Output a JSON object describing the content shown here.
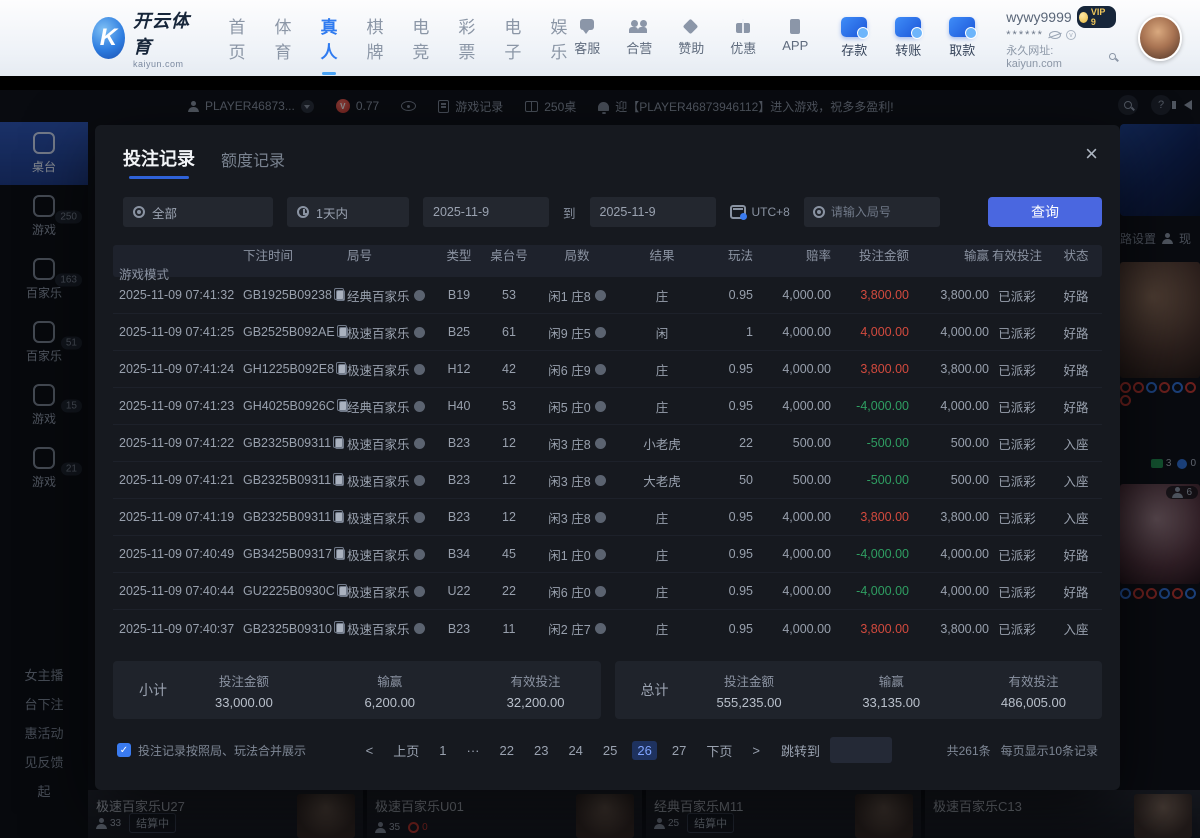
{
  "navbar": {
    "logo": {
      "mark": "K",
      "brand": "开云体育",
      "domain": "kaiyun.com"
    },
    "links": [
      {
        "label": "首页"
      },
      {
        "label": "体育"
      },
      {
        "label": "真人",
        "cls": "active"
      },
      {
        "label": "棋牌"
      },
      {
        "label": "电竞"
      },
      {
        "label": "彩票"
      },
      {
        "label": "电子"
      },
      {
        "label": "娱乐"
      }
    ],
    "quick": [
      {
        "label": "客服",
        "icon": "ic-service"
      },
      {
        "label": "合营",
        "icon": "ic-partner"
      },
      {
        "label": "赞助",
        "icon": "ic-sponsor"
      },
      {
        "label": "优惠",
        "icon": "ic-promo"
      },
      {
        "label": "APP",
        "icon": "ic-app"
      }
    ],
    "wallet": [
      {
        "label": "存款"
      },
      {
        "label": "转账"
      },
      {
        "label": "取款"
      }
    ],
    "user": {
      "name": "wywy9999",
      "vip": "VIP 9",
      "password_mask": "******",
      "site_note": "永久网址: kaiyun.com"
    }
  },
  "lobby": {
    "topbar": {
      "player": "PLAYER46873...",
      "balance": "0.77",
      "record": "游戏记录",
      "tables": "250桌",
      "marquee": "迎【PLAYER46873946112】进入游戏，祝多多盈利!"
    },
    "sidebar": [
      {
        "label": "桌台",
        "cls": "active"
      },
      {
        "label": "游戏",
        "badge": "250"
      },
      {
        "label": "百家乐",
        "badge": "163"
      },
      {
        "label": "百家乐",
        "badge": "51"
      },
      {
        "label": "游戏",
        "badge": "15"
      },
      {
        "label": "游戏",
        "badge": "21"
      }
    ],
    "sidebar_bottom": [
      {
        "label": "女主播"
      },
      {
        "label": "台下注"
      },
      {
        "label": "惠活动"
      },
      {
        "label": "见反馈"
      },
      {
        "label": "起"
      }
    ],
    "right_panel": {
      "road_settings": "路设置",
      "seat_label": "现",
      "viewers": "6",
      "stat_green": "3",
      "stat_blue": "0",
      "road1": [
        "red",
        "red",
        "blue",
        "red",
        "blue",
        "red",
        "red"
      ],
      "road2": [
        "blue",
        "red",
        "red",
        "blue",
        "red",
        "blue"
      ]
    },
    "tiles": [
      {
        "name": "极速百家乐U27",
        "players": "33",
        "status": "结算中"
      },
      {
        "name": "极速百家乐U01",
        "players": "35",
        "timer": "0"
      },
      {
        "name": "经典百家乐M11",
        "players": "25",
        "status": "结算中"
      },
      {
        "name": "极速百家乐C13"
      }
    ]
  },
  "modal": {
    "tabs": [
      {
        "label": "投注记录",
        "cls": "active"
      },
      {
        "label": "额度记录"
      }
    ],
    "close": "×",
    "filters": {
      "category": "全部",
      "range": "1天内",
      "date_from": "2025-11-9",
      "to_label": "到",
      "date_to": "2025-11-9",
      "timezone": "UTC+8",
      "round_placeholder": "请输入局号",
      "search": "查询"
    },
    "table": {
      "headers": [
        "下注时间",
        "局号",
        "类型",
        "桌台号",
        "局数",
        "结果",
        "玩法",
        "赔率",
        "投注金额",
        "输赢",
        "有效投注",
        "状态",
        "游戏模式"
      ],
      "rows": [
        {
          "d": "2025-11-09 07:41:32",
          "r": "GB1925B09238",
          "t": "经典百家乐",
          "tb": "B19",
          "n": "53",
          "res": "闲1 庄8",
          "play": "庄",
          "odds": "0.95",
          "bet": "4,000.00",
          "wl": "3,800.00",
          "wlc": "red",
          "valid": "3,800.00",
          "st": "已派彩",
          "mode": "好路"
        },
        {
          "d": "2025-11-09 07:41:25",
          "r": "GB2525B092AE",
          "t": "极速百家乐",
          "tb": "B25",
          "n": "61",
          "res": "闲9 庄5",
          "play": "闲",
          "odds": "1",
          "bet": "4,000.00",
          "wl": "4,000.00",
          "wlc": "red",
          "valid": "4,000.00",
          "st": "已派彩",
          "mode": "好路"
        },
        {
          "d": "2025-11-09 07:41:24",
          "r": "GH1225B092E8",
          "t": "极速百家乐",
          "tb": "H12",
          "n": "42",
          "res": "闲6 庄9",
          "play": "庄",
          "odds": "0.95",
          "bet": "4,000.00",
          "wl": "3,800.00",
          "wlc": "red",
          "valid": "3,800.00",
          "st": "已派彩",
          "mode": "好路"
        },
        {
          "d": "2025-11-09 07:41:23",
          "r": "GH4025B0926C",
          "t": "经典百家乐",
          "tb": "H40",
          "n": "53",
          "res": "闲5 庄0",
          "play": "庄",
          "odds": "0.95",
          "bet": "4,000.00",
          "wl": "-4,000.00",
          "wlc": "green",
          "valid": "4,000.00",
          "st": "已派彩",
          "mode": "好路"
        },
        {
          "d": "2025-11-09 07:41:22",
          "r": "GB2325B09311",
          "t": "极速百家乐",
          "tb": "B23",
          "n": "12",
          "res": "闲3 庄8",
          "play": "小老虎",
          "odds": "22",
          "bet": "500.00",
          "wl": "-500.00",
          "wlc": "green",
          "valid": "500.00",
          "st": "已派彩",
          "mode": "入座"
        },
        {
          "d": "2025-11-09 07:41:21",
          "r": "GB2325B09311",
          "t": "极速百家乐",
          "tb": "B23",
          "n": "12",
          "res": "闲3 庄8",
          "play": "大老虎",
          "odds": "50",
          "bet": "500.00",
          "wl": "-500.00",
          "wlc": "green",
          "valid": "500.00",
          "st": "已派彩",
          "mode": "入座"
        },
        {
          "d": "2025-11-09 07:41:19",
          "r": "GB2325B09311",
          "t": "极速百家乐",
          "tb": "B23",
          "n": "12",
          "res": "闲3 庄8",
          "play": "庄",
          "odds": "0.95",
          "bet": "4,000.00",
          "wl": "3,800.00",
          "wlc": "red",
          "valid": "3,800.00",
          "st": "已派彩",
          "mode": "入座"
        },
        {
          "d": "2025-11-09 07:40:49",
          "r": "GB3425B09317",
          "t": "极速百家乐",
          "tb": "B34",
          "n": "45",
          "res": "闲1 庄0",
          "play": "庄",
          "odds": "0.95",
          "bet": "4,000.00",
          "wl": "-4,000.00",
          "wlc": "green",
          "valid": "4,000.00",
          "st": "已派彩",
          "mode": "好路"
        },
        {
          "d": "2025-11-09 07:40:44",
          "r": "GU2225B0930C",
          "t": "极速百家乐",
          "tb": "U22",
          "n": "22",
          "res": "闲6 庄0",
          "play": "庄",
          "odds": "0.95",
          "bet": "4,000.00",
          "wl": "-4,000.00",
          "wlc": "green",
          "valid": "4,000.00",
          "st": "已派彩",
          "mode": "好路"
        },
        {
          "d": "2025-11-09 07:40:37",
          "r": "GB2325B09310",
          "t": "极速百家乐",
          "tb": "B23",
          "n": "11",
          "res": "闲2 庄7",
          "play": "庄",
          "odds": "0.95",
          "bet": "4,000.00",
          "wl": "3,800.00",
          "wlc": "red",
          "valid": "3,800.00",
          "st": "已派彩",
          "mode": "入座"
        }
      ]
    },
    "summary": {
      "subtotal": {
        "title": "小计",
        "bet_label": "投注金额",
        "bet": "33,000.00",
        "wl_label": "输赢",
        "wl": "6,200.00",
        "valid_label": "有效投注",
        "valid": "32,200.00"
      },
      "total": {
        "title": "总计",
        "bet_label": "投注金额",
        "bet": "555,235.00",
        "wl_label": "输赢",
        "wl": "33,135.00",
        "valid_label": "有效投注",
        "valid": "486,005.00"
      }
    },
    "footer": {
      "merge_note": "投注记录按照局、玩法合并展示",
      "check_glyph": "✓",
      "pages": [
        {
          "t": "<"
        },
        {
          "t": "上页"
        },
        {
          "t": "1"
        },
        {
          "t": "···"
        },
        {
          "t": "22"
        },
        {
          "t": "23"
        },
        {
          "t": "24"
        },
        {
          "t": "25"
        },
        {
          "t": "26",
          "cls": "active"
        },
        {
          "t": "27"
        },
        {
          "t": "下页"
        },
        {
          "t": ">"
        }
      ],
      "jump_label": "跳转到",
      "total_note": "共261条",
      "per_page_note": "每页显示10条记录"
    }
  }
}
